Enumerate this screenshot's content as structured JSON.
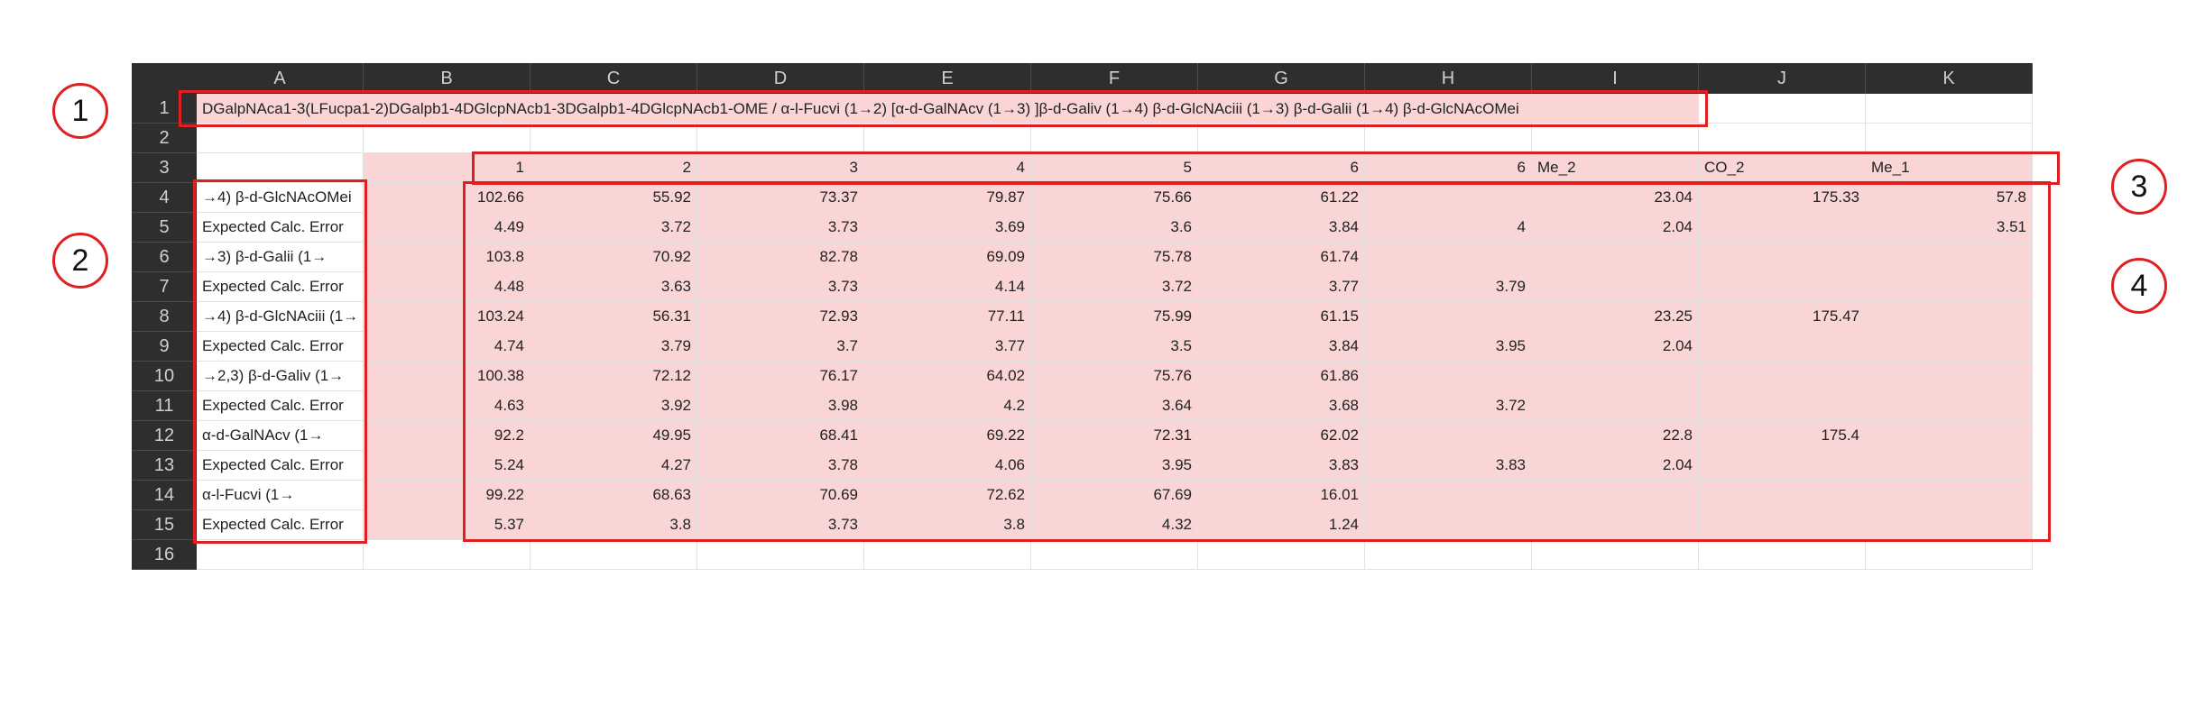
{
  "columns": [
    "A",
    "B",
    "C",
    "D",
    "E",
    "F",
    "G",
    "H",
    "I",
    "J",
    "K"
  ],
  "rows": [
    "1",
    "2",
    "3",
    "4",
    "5",
    "6",
    "7",
    "8",
    "9",
    "10",
    "11",
    "12",
    "13",
    "14",
    "15",
    "16"
  ],
  "title": "DGalpNAca1-3(LFucpa1-2)DGalpb1-4DGlcpNAcb1-3DGalpb1-4DGlcpNAcb1-OME / α-l-Fucvi (1→2) [α-d-GalNAcv (1→3) ]β-d-Galiv (1→4) β-d-GlcNAciii (1→3) β-d-Galii (1→4) β-d-GlcNAcOMei",
  "header_row": [
    "",
    "1",
    "2",
    "3",
    "4",
    "5",
    "6",
    "6",
    "Me_2",
    "CO_2",
    "Me_1"
  ],
  "data_rows": [
    [
      "→4) β-d-GlcNAcOMei",
      "102.66",
      "55.92",
      "73.37",
      "79.87",
      "75.66",
      "61.22",
      "",
      "23.04",
      "175.33",
      "57.8"
    ],
    [
      "Expected Calc. Error",
      "4.49",
      "3.72",
      "3.73",
      "3.69",
      "3.6",
      "3.84",
      "4",
      "2.04",
      "",
      "3.51"
    ],
    [
      "→3) β-d-Galii (1→",
      "103.8",
      "70.92",
      "82.78",
      "69.09",
      "75.78",
      "61.74",
      "",
      "",
      "",
      ""
    ],
    [
      "Expected Calc. Error",
      "4.48",
      "3.63",
      "3.73",
      "4.14",
      "3.72",
      "3.77",
      "3.79",
      "",
      "",
      ""
    ],
    [
      "→4) β-d-GlcNAciii (1→",
      "103.24",
      "56.31",
      "72.93",
      "77.11",
      "75.99",
      "61.15",
      "",
      "23.25",
      "175.47",
      ""
    ],
    [
      "Expected Calc. Error",
      "4.74",
      "3.79",
      "3.7",
      "3.77",
      "3.5",
      "3.84",
      "3.95",
      "2.04",
      "",
      ""
    ],
    [
      "→2,3) β-d-Galiv (1→",
      "100.38",
      "72.12",
      "76.17",
      "64.02",
      "75.76",
      "61.86",
      "",
      "",
      "",
      ""
    ],
    [
      "Expected Calc. Error",
      "4.63",
      "3.92",
      "3.98",
      "4.2",
      "3.64",
      "3.68",
      "3.72",
      "",
      "",
      ""
    ],
    [
      "α-d-GalNAcv (1→",
      "92.2",
      "49.95",
      "68.41",
      "69.22",
      "72.31",
      "62.02",
      "",
      "22.8",
      "175.4",
      ""
    ],
    [
      "Expected Calc. Error",
      "5.24",
      "4.27",
      "3.78",
      "4.06",
      "3.95",
      "3.83",
      "3.83",
      "2.04",
      "",
      ""
    ],
    [
      "α-l-Fucvi (1→",
      "99.22",
      "68.63",
      "70.69",
      "72.62",
      "67.69",
      "16.01",
      "",
      "",
      "",
      ""
    ],
    [
      "Expected Calc. Error",
      "5.37",
      "3.8",
      "3.73",
      "3.8",
      "4.32",
      "1.24",
      "",
      "",
      "",
      ""
    ]
  ],
  "badges": [
    "1",
    "2",
    "3",
    "4"
  ],
  "colors": {
    "header_bg": "#2e2e2e",
    "highlight": "#f9d5d6",
    "annotation": "#e02020"
  }
}
